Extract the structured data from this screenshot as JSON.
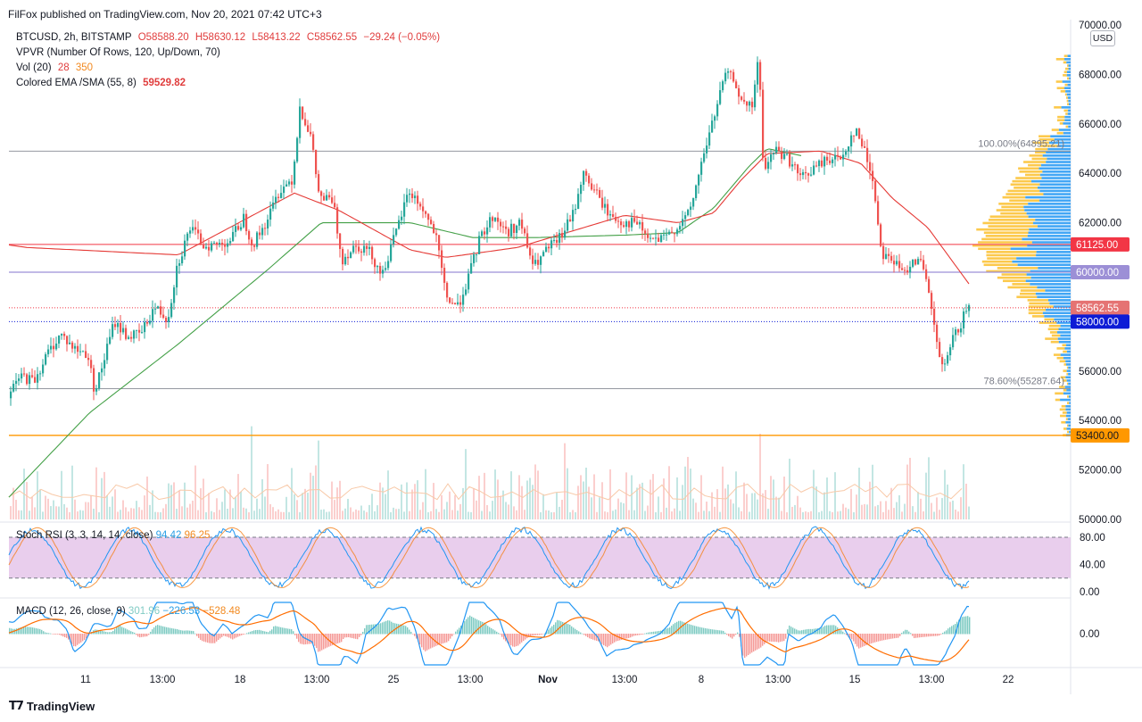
{
  "publisher": "FilFox published on TradingView.com, Nov 20, 2021 07:42 UTC+3",
  "brand": "TradingView",
  "currency_button": "USD",
  "legend": {
    "symbol": "BTCUSD, 2h, BITSTAMP",
    "open": "O58588.20",
    "high": "H58630.12",
    "low": "L58413.22",
    "close": "C58562.55",
    "change": "−29.24 (−0.05%)",
    "vpvr": "VPVR (Number Of Rows, 120, Up/Down, 70)",
    "vol_label": "Vol (20)",
    "vol_value": "28",
    "vol_ma": "350",
    "ema_label": "Colored EMA /SMA (55, 8)",
    "ema_value": "59529.82"
  },
  "stoch_legend": {
    "label": "Stoch RSI (3, 3, 14, 14, close)",
    "k": "94.42",
    "d": "96.25"
  },
  "macd_legend": {
    "label": "MACD (12, 26, close, 9)",
    "hist": "301.96",
    "macd": "−226.53",
    "signal": "−528.48"
  },
  "colors": {
    "up": "#26a69a",
    "down": "#ef5350",
    "ema": "#e53935",
    "sma": "#43a047",
    "vpvr_up": "#2196f3",
    "vpvr_down": "#fbc02d",
    "level_red": "#f23645",
    "level_purple": "#9c8fd6",
    "level_orange": "#ff9800",
    "level_blue": "#0d1bd6",
    "grid": "#9598a1",
    "stoch_k": "#2196f3",
    "stoch_d": "#f57f17",
    "stoch_band": "#e1bee7",
    "macd": "#2196f3",
    "signal": "#ff6d00"
  },
  "chart_data": [
    {
      "type": "candlestick",
      "title": "BTCUSD, 2h, BITSTAMP",
      "x_tick_labels": [
        "11",
        "13:00",
        "18",
        "13:00",
        "25",
        "13:00",
        "Nov",
        "13:00",
        "8",
        "13:00",
        "15",
        "13:00",
        "22"
      ],
      "ylim": [
        50000,
        70000
      ],
      "y_ticks": [
        "70000.00",
        "68000.00",
        "66000.00",
        "64000.00",
        "62000.00",
        "60000.00",
        "58000.00",
        "56000.00",
        "54000.00",
        "52000.00",
        "50000.00"
      ],
      "price_anchors": [
        [
          0,
          54600
        ],
        [
          10,
          54900
        ],
        [
          25,
          55800
        ],
        [
          40,
          55600
        ],
        [
          55,
          56700
        ],
        [
          70,
          57500
        ],
        [
          85,
          56900
        ],
        [
          100,
          56700
        ],
        [
          108,
          55200
        ],
        [
          115,
          56000
        ],
        [
          130,
          58000
        ],
        [
          145,
          57400
        ],
        [
          160,
          57500
        ],
        [
          175,
          58600
        ],
        [
          190,
          58100
        ],
        [
          200,
          60200
        ],
        [
          215,
          61800
        ],
        [
          230,
          61100
        ],
        [
          245,
          61100
        ],
        [
          260,
          61300
        ],
        [
          275,
          62200
        ],
        [
          285,
          61100
        ],
        [
          300,
          62000
        ],
        [
          315,
          63300
        ],
        [
          330,
          63800
        ],
        [
          338,
          66700
        ],
        [
          350,
          65500
        ],
        [
          360,
          63000
        ],
        [
          375,
          62900
        ],
        [
          385,
          60500
        ],
        [
          400,
          61100
        ],
        [
          415,
          60900
        ],
        [
          430,
          59900
        ],
        [
          445,
          61500
        ],
        [
          460,
          63300
        ],
        [
          475,
          62600
        ],
        [
          490,
          61500
        ],
        [
          502,
          59000
        ],
        [
          515,
          58600
        ],
        [
          528,
          59900
        ],
        [
          540,
          61400
        ],
        [
          555,
          62300
        ],
        [
          570,
          61600
        ],
        [
          585,
          62000
        ],
        [
          600,
          60200
        ],
        [
          615,
          60900
        ],
        [
          630,
          61400
        ],
        [
          645,
          62400
        ],
        [
          655,
          64000
        ],
        [
          670,
          63200
        ],
        [
          685,
          62300
        ],
        [
          700,
          62000
        ],
        [
          715,
          62000
        ],
        [
          730,
          61300
        ],
        [
          745,
          61300
        ],
        [
          760,
          61800
        ],
        [
          775,
          62400
        ],
        [
          790,
          64700
        ],
        [
          800,
          66000
        ],
        [
          815,
          68000
        ],
        [
          825,
          67800
        ],
        [
          835,
          66700
        ],
        [
          845,
          66700
        ],
        [
          852,
          68800
        ],
        [
          858,
          64000
        ],
        [
          870,
          65000
        ],
        [
          885,
          64600
        ],
        [
          900,
          63800
        ],
        [
          915,
          64200
        ],
        [
          930,
          64600
        ],
        [
          945,
          64600
        ],
        [
          960,
          65800
        ],
        [
          970,
          65000
        ],
        [
          980,
          63800
        ],
        [
          990,
          60800
        ],
        [
          1000,
          60600
        ],
        [
          1015,
          59900
        ],
        [
          1025,
          60600
        ],
        [
          1035,
          60300
        ],
        [
          1045,
          58800
        ],
        [
          1052,
          57000
        ],
        [
          1060,
          56000
        ],
        [
          1070,
          57300
        ],
        [
          1080,
          58000
        ],
        [
          1086,
          58562.55
        ]
      ],
      "ema_anchors": [
        [
          10,
          61100
        ],
        [
          30,
          61000
        ],
        [
          200,
          60700
        ],
        [
          330,
          63200
        ],
        [
          380,
          62500
        ],
        [
          460,
          60900
        ],
        [
          500,
          60600
        ],
        [
          580,
          61000
        ],
        [
          700,
          62300
        ],
        [
          760,
          62000
        ],
        [
          800,
          62400
        ],
        [
          830,
          63700
        ],
        [
          860,
          64800
        ],
        [
          920,
          64900
        ],
        [
          965,
          64400
        ],
        [
          1000,
          63000
        ],
        [
          1040,
          61800
        ],
        [
          1086,
          59529.82
        ]
      ],
      "sma_anchors": [
        [
          10,
          50900
        ],
        [
          100,
          54300
        ],
        [
          200,
          57100
        ],
        [
          300,
          60100
        ],
        [
          360,
          62000
        ],
        [
          420,
          62000
        ],
        [
          460,
          62000
        ],
        [
          530,
          61400
        ],
        [
          600,
          61400
        ],
        [
          700,
          61500
        ],
        [
          760,
          61600
        ],
        [
          800,
          62600
        ],
        [
          840,
          64300
        ],
        [
          860,
          65000
        ],
        [
          900,
          64700
        ]
      ],
      "levels": [
        {
          "price": 64895.21,
          "label": "100.00%(64895.21)",
          "color": "grey"
        },
        {
          "price": 61125.0,
          "label": "61125.00",
          "color": "red"
        },
        {
          "price": 60000.0,
          "label": "60000.00",
          "color": "purple"
        },
        {
          "price": 58562.55,
          "label": "58562.55",
          "color": "dotted-red"
        },
        {
          "price": 58000.0,
          "label": "58000.00",
          "color": "blue"
        },
        {
          "price": 55287.64,
          "label": "78.60%(55287.64)",
          "color": "grey"
        },
        {
          "price": 53400.0,
          "label": "53400.00",
          "color": "orange"
        }
      ]
    },
    {
      "type": "bar",
      "title": "Vol (20)",
      "last_value": 28,
      "ma_value": 350
    },
    {
      "type": "line",
      "title": "Stoch RSI (3, 3, 14, 14, close)",
      "y_ticks": [
        "80.00",
        "40.00",
        "0.00"
      ],
      "ylim": [
        0,
        100
      ],
      "bands": [
        20,
        80
      ],
      "series": [
        {
          "name": "K",
          "last": 94.42
        },
        {
          "name": "D",
          "last": 96.25
        }
      ]
    },
    {
      "type": "line",
      "title": "MACD (12, 26, close, 9)",
      "y_ticks": [
        "0.00"
      ],
      "series": [
        {
          "name": "Histogram",
          "last": 301.96
        },
        {
          "name": "MACD",
          "last": -226.53
        },
        {
          "name": "Signal",
          "last": -528.48
        }
      ]
    }
  ]
}
